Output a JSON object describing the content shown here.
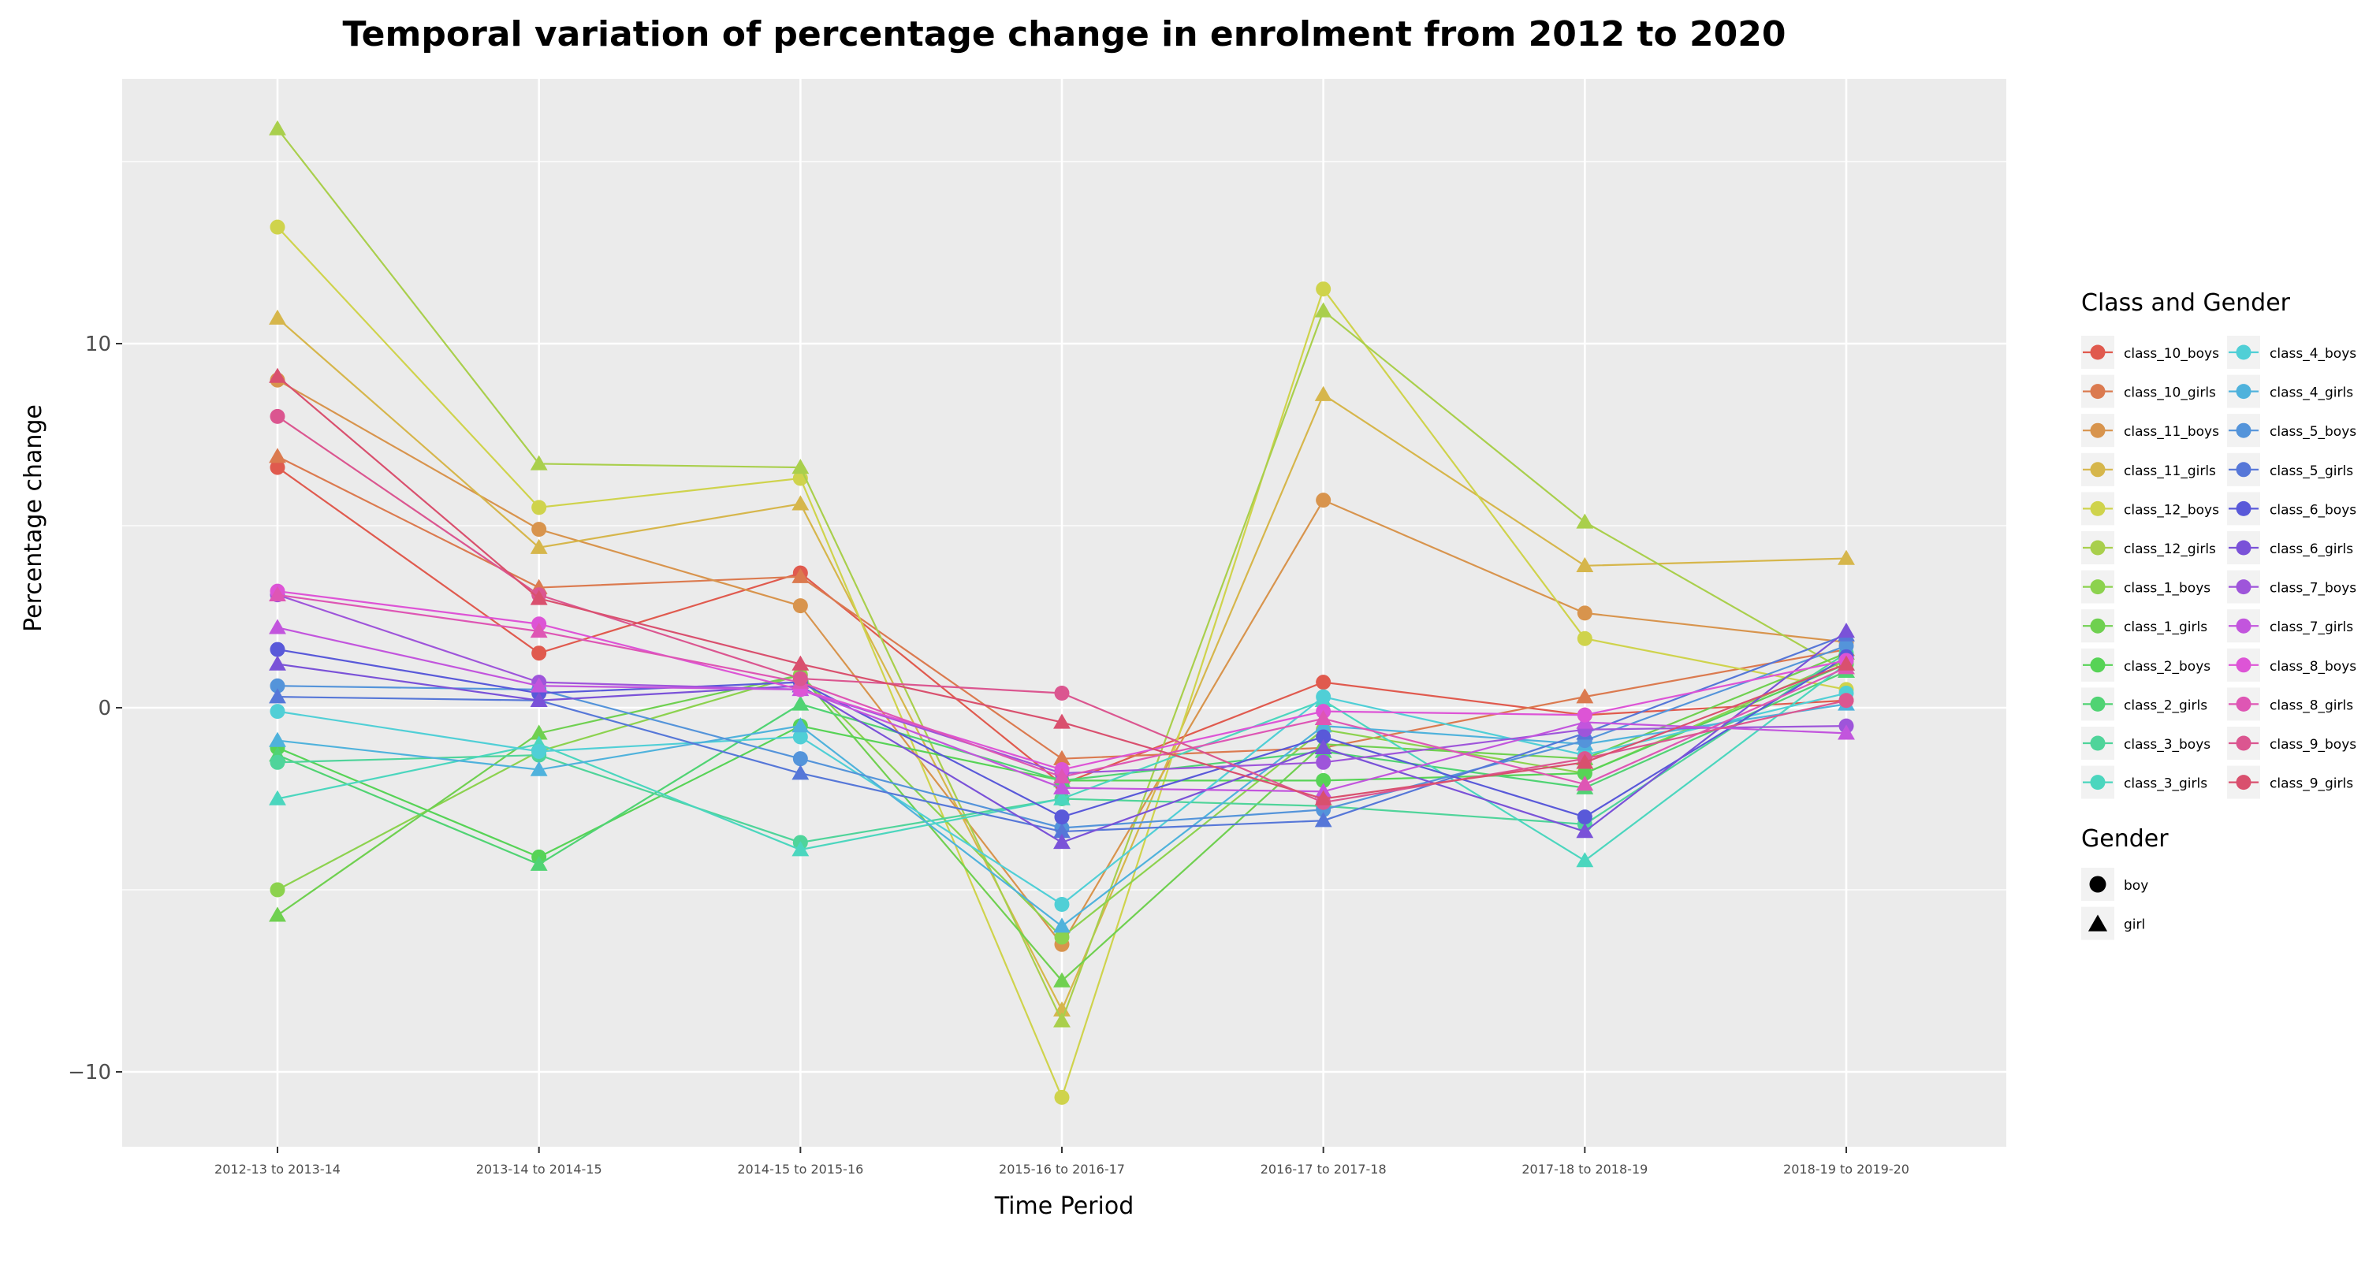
{
  "chart_data": {
    "type": "line",
    "title": "Temporal variation of percentage change in enrolment from 2012 to 2020",
    "xlabel": "Time Period",
    "ylabel": "Percentage change",
    "categories": [
      "2012-13 to 2013-14",
      "2013-14 to 2014-15",
      "2014-15 to 2015-16",
      "2015-16 to 2016-17",
      "2016-17 to 2017-18",
      "2017-18 to 2018-19",
      "2018-19 to 2019-20"
    ],
    "ylim": [
      -12.3,
      17.3
    ],
    "yticks": [
      -10,
      0,
      10
    ],
    "ytick_labels": [
      "−10",
      "0",
      "10"
    ],
    "grid": true,
    "legend_title": "Class and Gender",
    "shape_legend_title": "Gender",
    "shape_legend": [
      {
        "label": "boy",
        "shape": "circle"
      },
      {
        "label": "girl",
        "shape": "triangle"
      }
    ],
    "legend_placement": "right",
    "series": [
      {
        "name": "class_10_boys",
        "gender": "boy",
        "color": "#E05A4E",
        "values": [
          6.6,
          1.5,
          3.7,
          -2.1,
          0.7,
          -0.2,
          0.2
        ]
      },
      {
        "name": "class_10_girls",
        "gender": "girl",
        "color": "#DB7A4F",
        "values": [
          6.9,
          3.3,
          3.6,
          -1.4,
          -1.1,
          0.3,
          1.6
        ]
      },
      {
        "name": "class_11_boys",
        "gender": "boy",
        "color": "#D8944D",
        "values": [
          9.0,
          4.9,
          2.8,
          -6.5,
          5.7,
          2.6,
          1.8
        ]
      },
      {
        "name": "class_11_girls",
        "gender": "girl",
        "color": "#D6B64B",
        "values": [
          10.7,
          4.4,
          5.6,
          -8.3,
          8.6,
          3.9,
          4.1
        ]
      },
      {
        "name": "class_12_boys",
        "gender": "boy",
        "color": "#CFD34C",
        "values": [
          13.2,
          5.5,
          6.3,
          -10.7,
          11.5,
          1.9,
          0.5
        ]
      },
      {
        "name": "class_12_girls",
        "gender": "girl",
        "color": "#A9CF4C",
        "values": [
          15.9,
          6.7,
          6.6,
          -8.6,
          10.9,
          5.1,
          1.0
        ]
      },
      {
        "name": "class_1_boys",
        "gender": "boy",
        "color": "#8CD24E",
        "values": [
          -5.0,
          -1.2,
          0.9,
          -6.3,
          -0.6,
          -1.8,
          1.3
        ]
      },
      {
        "name": "class_1_girls",
        "gender": "girl",
        "color": "#6FD050",
        "values": [
          -5.7,
          -0.7,
          0.9,
          -7.5,
          -1.0,
          -1.4,
          1.5
        ]
      },
      {
        "name": "class_2_boys",
        "gender": "boy",
        "color": "#57D356",
        "values": [
          -1.1,
          -4.1,
          -0.5,
          -2.0,
          -2.0,
          -1.8,
          1.2
        ]
      },
      {
        "name": "class_2_girls",
        "gender": "girl",
        "color": "#50D373",
        "values": [
          -1.3,
          -4.3,
          0.1,
          -2.0,
          -1.2,
          -2.2,
          1.0
        ]
      },
      {
        "name": "class_3_boys",
        "gender": "boy",
        "color": "#4FD49A",
        "values": [
          -1.5,
          -1.3,
          -3.7,
          -2.5,
          -2.7,
          -3.2,
          1.5
        ]
      },
      {
        "name": "class_3_girls",
        "gender": "girl",
        "color": "#4BD6BE",
        "values": [
          -2.5,
          -1.0,
          -3.9,
          -2.5,
          0.2,
          -4.2,
          1.2
        ]
      },
      {
        "name": "class_4_boys",
        "gender": "boy",
        "color": "#50CFD6",
        "values": [
          -0.1,
          -1.2,
          -0.8,
          -5.4,
          0.3,
          -1.3,
          0.4
        ]
      },
      {
        "name": "class_4_girls",
        "gender": "girl",
        "color": "#4FB2DC",
        "values": [
          -0.9,
          -1.7,
          -0.5,
          -6.0,
          -0.5,
          -1.0,
          0.1
        ]
      },
      {
        "name": "class_5_boys",
        "gender": "boy",
        "color": "#5494DA",
        "values": [
          0.6,
          0.5,
          -1.4,
          -3.3,
          -2.8,
          -0.9,
          1.7
        ]
      },
      {
        "name": "class_5_girls",
        "gender": "girl",
        "color": "#5677D8",
        "values": [
          0.3,
          0.2,
          -1.8,
          -3.4,
          -3.1,
          -0.7,
          2.0
        ]
      },
      {
        "name": "class_6_boys",
        "gender": "boy",
        "color": "#5959D9",
        "values": [
          1.6,
          0.4,
          0.7,
          -3.0,
          -0.8,
          -3.0,
          1.4
        ]
      },
      {
        "name": "class_6_girls",
        "gender": "girl",
        "color": "#7A52D8",
        "values": [
          1.2,
          0.2,
          0.6,
          -3.7,
          -1.1,
          -3.4,
          2.1
        ]
      },
      {
        "name": "class_7_boys",
        "gender": "boy",
        "color": "#9E55DA",
        "values": [
          3.1,
          0.7,
          0.5,
          -1.8,
          -1.5,
          -0.6,
          -0.5
        ]
      },
      {
        "name": "class_7_girls",
        "gender": "girl",
        "color": "#C255DD",
        "values": [
          2.2,
          0.6,
          0.5,
          -2.2,
          -2.3,
          -0.4,
          -0.7
        ]
      },
      {
        "name": "class_8_boys",
        "gender": "boy",
        "color": "#DD54D6",
        "values": [
          3.2,
          2.3,
          0.5,
          -1.7,
          -0.1,
          -0.2,
          1.3
        ]
      },
      {
        "name": "class_8_girls",
        "gender": "girl",
        "color": "#DE56B4",
        "values": [
          3.1,
          2.1,
          0.7,
          -1.9,
          -0.3,
          -2.1,
          1.1
        ]
      },
      {
        "name": "class_9_boys",
        "gender": "boy",
        "color": "#DB5690",
        "values": [
          8.0,
          3.1,
          0.8,
          0.4,
          -2.6,
          -1.4,
          0.2
        ]
      },
      {
        "name": "class_9_girls",
        "gender": "girl",
        "color": "#D9506E",
        "values": [
          9.1,
          3.0,
          1.2,
          -0.4,
          -2.5,
          -1.5,
          1.2
        ]
      }
    ]
  }
}
